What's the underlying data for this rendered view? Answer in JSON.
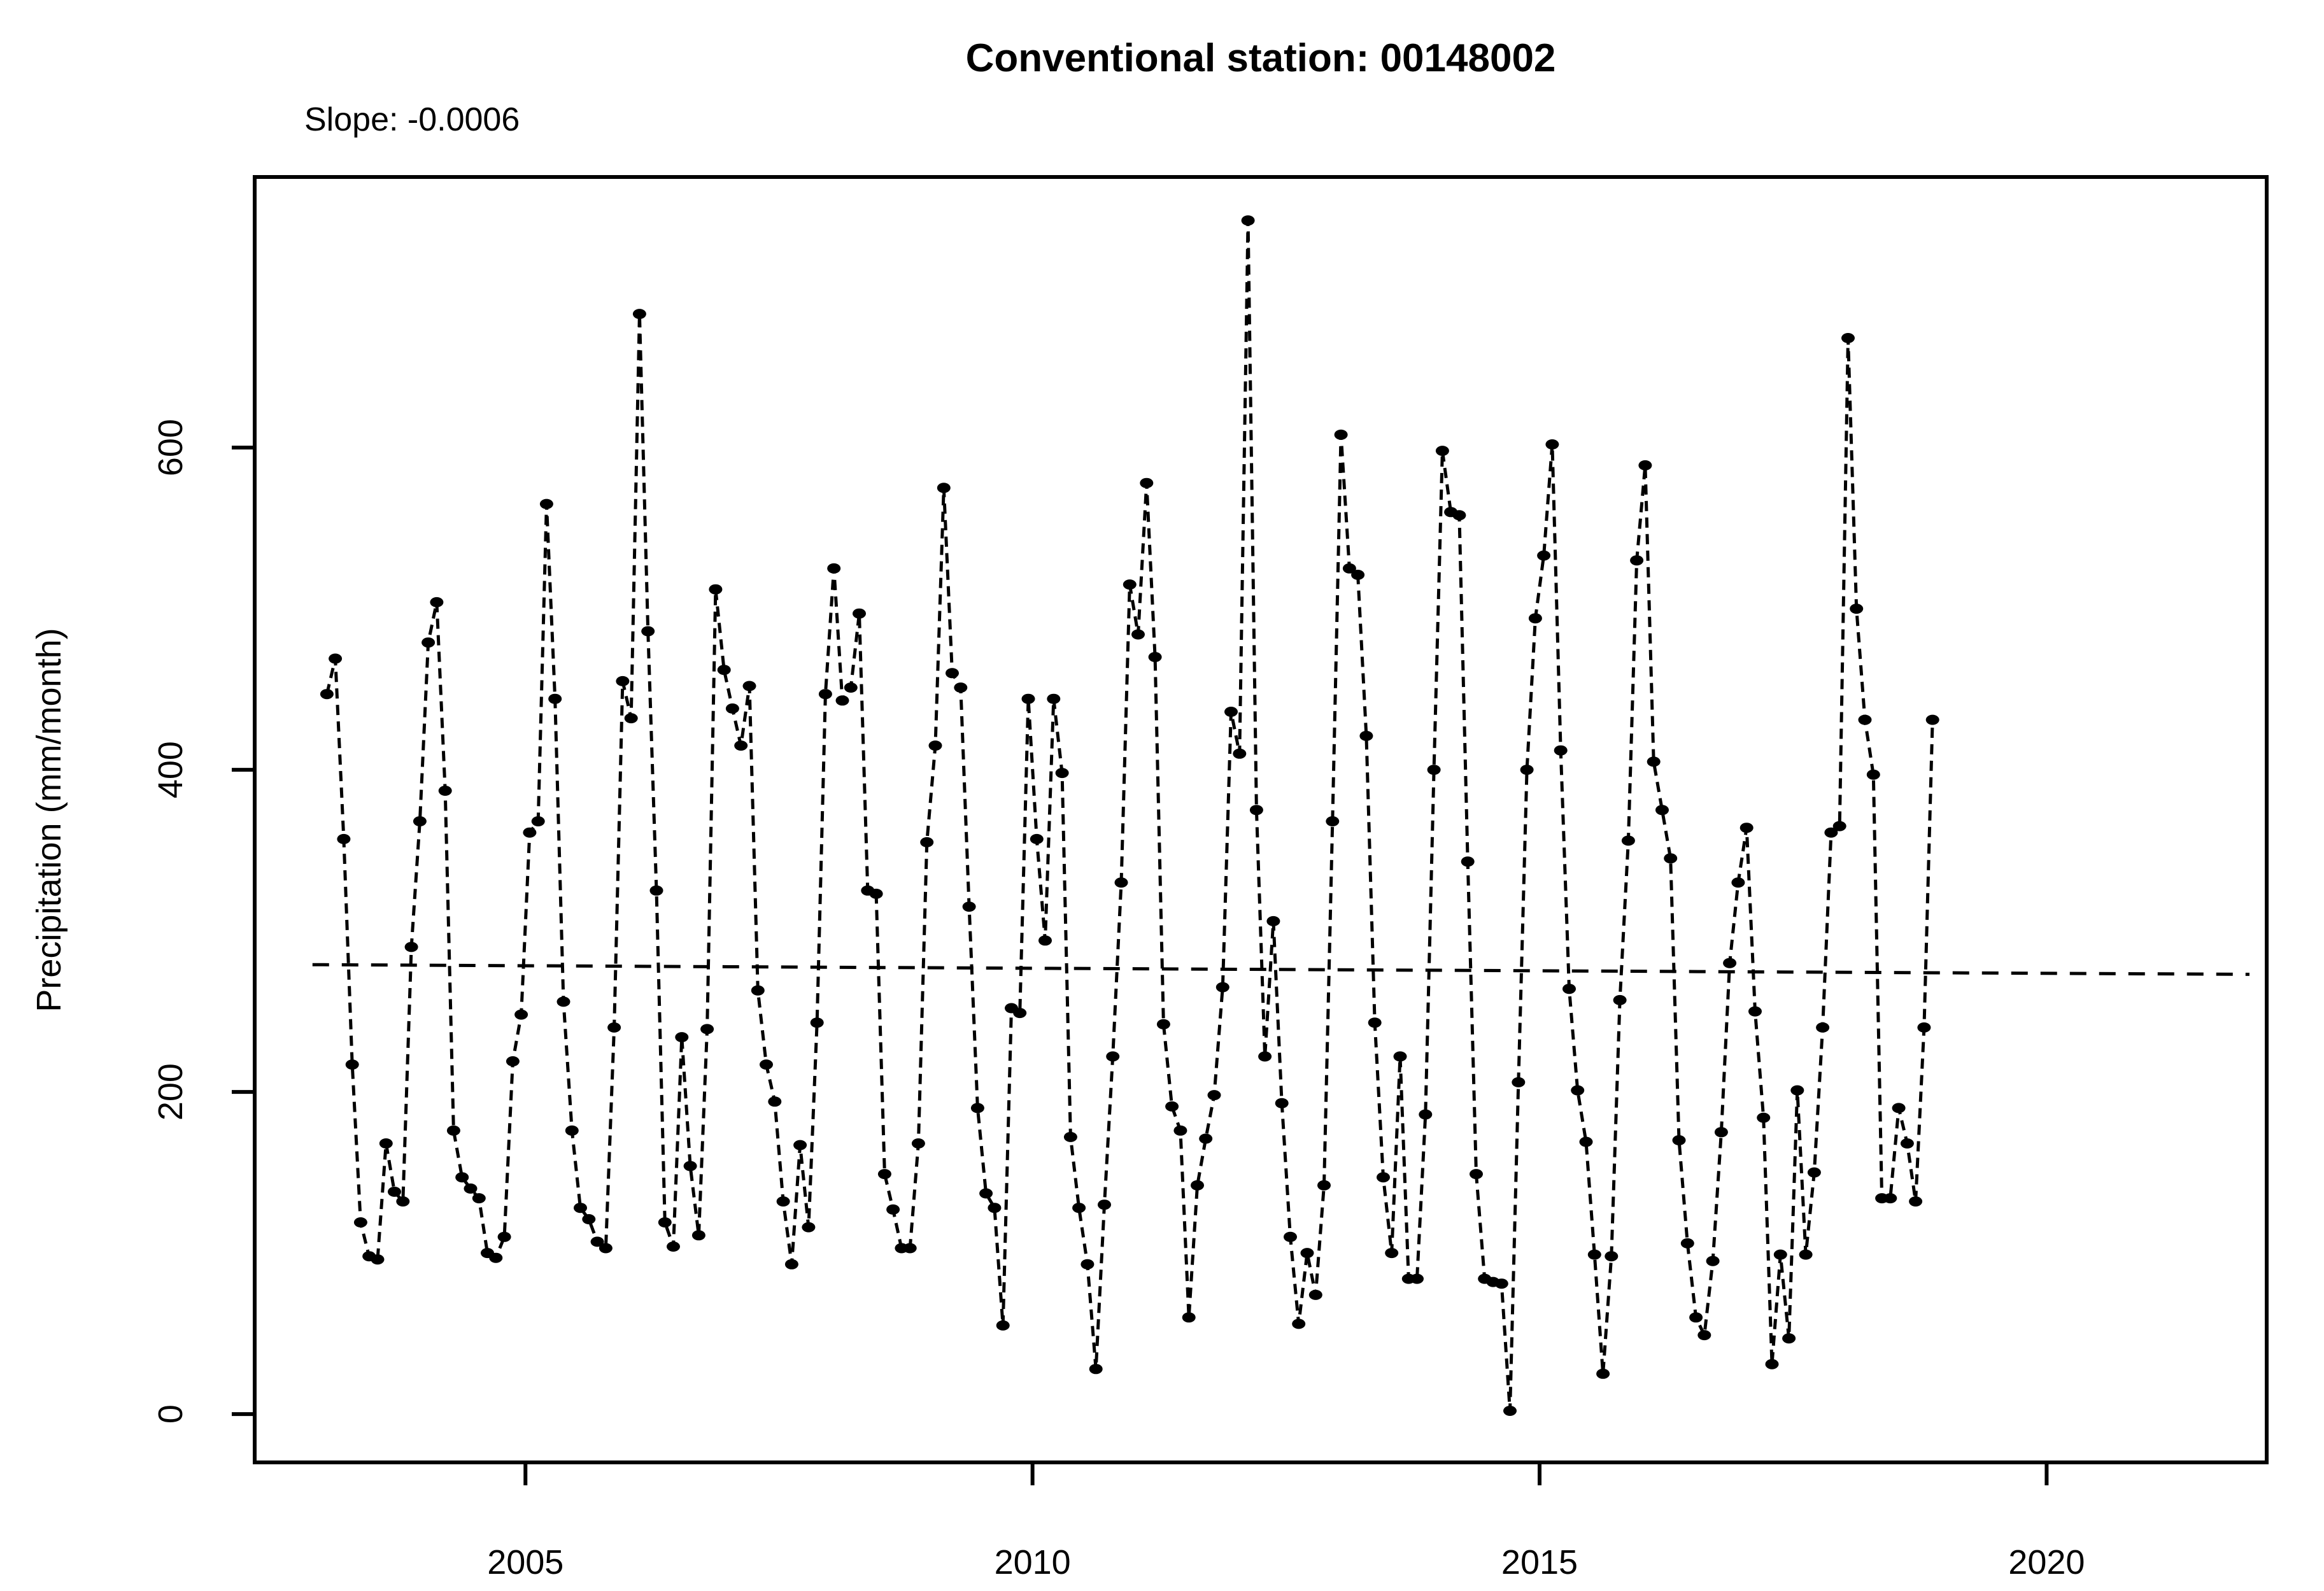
{
  "page": {
    "background": "#ffffff",
    "foreground": "#000000"
  },
  "header": {
    "title": "Conventional station: 00148002",
    "annotation": "Slope: -0.0006"
  },
  "chart_data": {
    "type": "line",
    "title": "Conventional station: 00148002",
    "annotation": "Slope: -0.0006",
    "xlabel": "",
    "ylabel": "Precipitation (mm/month)",
    "x_ticks": [
      2005,
      2010,
      2015,
      2020
    ],
    "y_ticks": [
      0,
      200,
      400,
      600
    ],
    "xlim": [
      2002.33,
      2022.17
    ],
    "ylim": [
      -30,
      768
    ],
    "grid": false,
    "legend_position": "none",
    "series_color": "#000000",
    "marker": "filled-circle",
    "series_line_style": "dashed",
    "start_year": 2003,
    "start_month": 1,
    "end_year": 2018,
    "end_month": 11,
    "values_monthly": [
      447,
      469,
      357,
      217,
      119,
      98,
      96,
      168,
      138,
      132,
      290,
      368,
      479,
      504,
      387,
      176,
      147,
      140,
      134,
      100,
      97,
      110,
      219,
      248,
      361,
      368,
      565,
      444,
      256,
      176,
      128,
      121,
      107,
      103,
      240,
      455,
      432,
      683,
      486,
      325,
      119,
      104,
      234,
      154,
      111,
      239,
      512,
      462,
      438,
      415,
      452,
      263,
      217,
      194,
      132,
      93,
      167,
      116,
      243,
      447,
      525,
      443,
      451,
      497,
      325,
      323,
      149,
      127,
      103,
      103,
      168,
      355,
      415,
      575,
      460,
      451,
      315,
      190,
      137,
      128,
      55,
      252,
      249,
      444,
      357,
      294,
      444,
      398,
      172,
      128,
      93,
      28,
      130,
      222,
      330,
      515,
      484,
      578,
      470,
      242,
      191,
      176,
      60,
      142,
      171,
      198,
      265,
      436,
      410,
      741,
      375,
      222,
      306,
      193,
      110,
      56,
      100,
      74,
      142,
      368,
      608,
      525,
      521,
      421,
      243,
      147,
      100,
      222,
      84,
      84,
      186,
      400,
      598,
      560,
      558,
      343,
      149,
      84,
      82,
      81,
      2,
      206,
      400,
      494,
      533,
      602,
      412,
      264,
      201,
      169,
      99,
      25,
      98,
      257,
      356,
      530,
      589,
      405,
      375,
      345,
      170,
      106,
      60,
      49,
      95,
      175,
      280,
      330,
      364,
      250,
      184,
      31,
      99,
      47,
      201,
      99,
      150,
      240,
      361,
      365,
      668,
      500,
      431,
      397,
      134,
      134,
      190,
      168,
      132,
      240,
      431
    ],
    "trend_line": {
      "style": "dashed",
      "x": [
        2002.9,
        2022.0
      ],
      "y": [
        279,
        273
      ]
    }
  }
}
